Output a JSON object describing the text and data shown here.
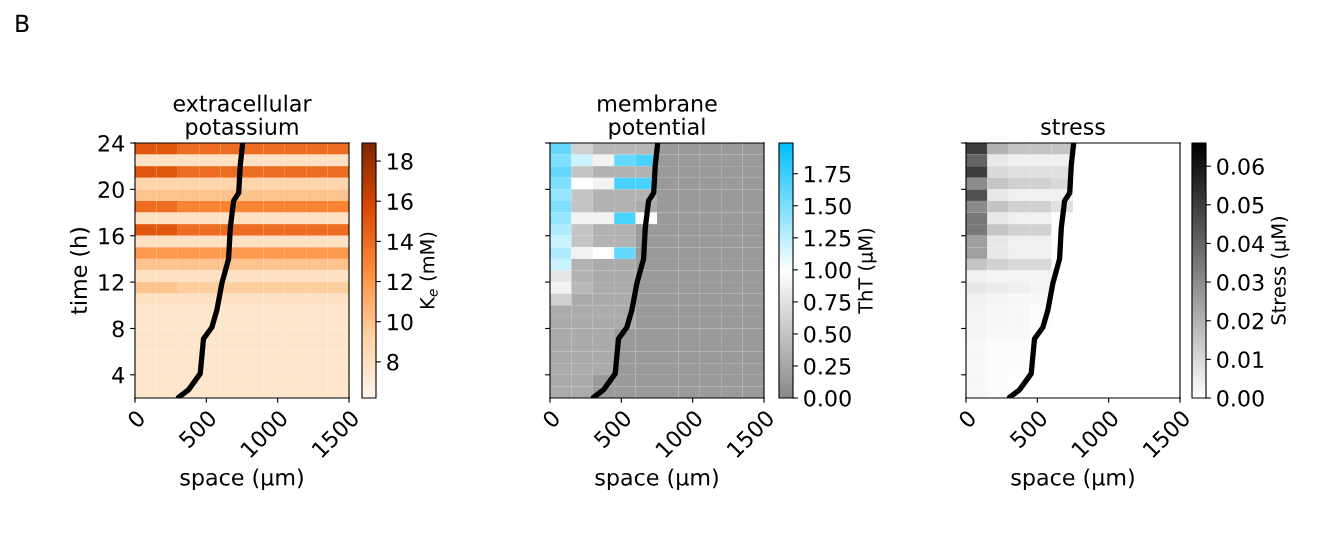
{
  "chart_data": [
    {
      "type": "heatmap",
      "title": "extracellular\npotassium",
      "xlabel": "space (µm)",
      "ylabel": "time (h)",
      "clabel": "K$_{e}$ (mM)",
      "annotations": [
        "B"
      ],
      "xlim": [
        0,
        1500
      ],
      "xticks": [
        0,
        500,
        1000,
        1500
      ],
      "ylim": [
        2,
        24
      ],
      "yticks": [
        4,
        8,
        12,
        16,
        20,
        24
      ],
      "clim": [
        6.2,
        18.9
      ],
      "cticks": [
        8,
        10,
        12,
        14,
        16,
        18
      ],
      "colors": [
        "#fff5eb",
        "#fdd0a2",
        "#fd8d3c",
        "#d94801",
        "#7f2704"
      ],
      "cells": [
        [
          15,
          15,
          14,
          14,
          14,
          14,
          14,
          14,
          14,
          14
        ],
        [
          8,
          8,
          8,
          8,
          8,
          8,
          8,
          8,
          8,
          8
        ],
        [
          15,
          15,
          14,
          14,
          14,
          14,
          14,
          14,
          14,
          14
        ],
        [
          9,
          9,
          9,
          9,
          9,
          9,
          9,
          9,
          9,
          9
        ],
        [
          10,
          10,
          10,
          10,
          10,
          10,
          10,
          10,
          10,
          10
        ],
        [
          14,
          14,
          13,
          13,
          13,
          13,
          13,
          13,
          13,
          13
        ],
        [
          8,
          8,
          8,
          8,
          8,
          8,
          8,
          8,
          8,
          8
        ],
        [
          15,
          15,
          14,
          14,
          14,
          14,
          14,
          14,
          14,
          14
        ],
        [
          8,
          8,
          8,
          8,
          8,
          8,
          8,
          8,
          8,
          8
        ],
        [
          12,
          12,
          12,
          12,
          12,
          12,
          12,
          12,
          12,
          12
        ],
        [
          10,
          10,
          10,
          10,
          10,
          10,
          10,
          10,
          10,
          10
        ],
        [
          8,
          8,
          8,
          8,
          8,
          8,
          8,
          8,
          8,
          8
        ],
        [
          10,
          10,
          9.5,
          9.5,
          9.5,
          9.5,
          9.5,
          9.5,
          9.5,
          9.5
        ],
        [
          8,
          8,
          8,
          8,
          8,
          8,
          8,
          8,
          8,
          8
        ],
        [
          7.5,
          7.5,
          7.5,
          7.5,
          7.5,
          7.5,
          7.5,
          7.5,
          7.5,
          7.5
        ],
        [
          7.5,
          7.5,
          7.5,
          7.5,
          7.5,
          7.5,
          7.5,
          7.5,
          7.5,
          7.5
        ],
        [
          7.5,
          7.5,
          7.5,
          7.5,
          7.5,
          7.5,
          7.5,
          7.5,
          7.5,
          7.5
        ],
        [
          7.5,
          7.5,
          7.5,
          7.5,
          7.5,
          7.5,
          7.5,
          7.5,
          7.5,
          7.5
        ],
        [
          7.5,
          7.5,
          7.5,
          7.5,
          7.5,
          7.5,
          7.5,
          7.5,
          7.5,
          7.5
        ],
        [
          7.5,
          7.5,
          7.5,
          7.5,
          7.5,
          7.5,
          7.5,
          7.5,
          7.5,
          7.5
        ],
        [
          7.5,
          7.5,
          7.5,
          7.5,
          7.5,
          7.5,
          7.5,
          7.5,
          7.5,
          7.5
        ],
        [
          7.5,
          7.5,
          7.5,
          7.5,
          7.5,
          7.5,
          7.5,
          7.5,
          7.5,
          7.5
        ]
      ],
      "series": [
        {
          "type": "line",
          "color": "#000000",
          "x": [
            305,
            375,
            457,
            480,
            539,
            574,
            609,
            656,
            668,
            691,
            727,
            738,
            755
          ],
          "values": [
            2.05,
            2.7,
            4.1,
            7.1,
            8.1,
            9.6,
            11.9,
            14,
            16.7,
            19,
            19.7,
            22.1,
            24
          ]
        }
      ]
    },
    {
      "type": "heatmap",
      "title": "membrane\npotential",
      "xlabel": "space (µm)",
      "clabel": "ThT (μM)",
      "tick_labels": "x",
      "xlim": [
        0,
        1500
      ],
      "xticks": [
        0,
        500,
        1000,
        1500
      ],
      "ylim": [
        2,
        24
      ],
      "yticks": [
        {
          "value": 4,
          "label": null
        },
        {
          "value": 8,
          "label": null
        },
        {
          "value": 12,
          "label": null
        },
        {
          "value": 16,
          "label": null
        },
        {
          "value": 20,
          "label": null
        },
        {
          "value": 24,
          "label": null
        }
      ],
      "clim": [
        0,
        1.99
      ],
      "cticks": [
        {
          "value": 0,
          "label": "0.00"
        },
        {
          "value": 0.25,
          "label": "0.25"
        },
        {
          "value": 0.5,
          "label": "0.50"
        },
        {
          "value": 0.75,
          "label": "0.75"
        },
        {
          "value": 1,
          "label": "1.00"
        },
        {
          "value": 1.25,
          "label": "1.25"
        },
        {
          "value": 1.5,
          "label": "1.50"
        },
        {
          "value": 1.75,
          "label": "1.75"
        }
      ],
      "colors": [
        "#888888",
        "#ffffff",
        "#00bfff"
      ],
      "cells": [
        [
          1.6,
          0.6,
          0.4,
          0.4,
          0.4,
          0.15,
          0.15,
          0.15,
          0.15,
          0.15
        ],
        [
          1.5,
          1.2,
          0.9,
          1.6,
          1.7,
          0.15,
          0.15,
          0.15,
          0.15,
          0.15
        ],
        [
          1.6,
          0.5,
          0.35,
          0.35,
          0.35,
          0.15,
          0.15,
          0.15,
          0.15,
          0.15
        ],
        [
          1.5,
          1.0,
          0.9,
          1.7,
          1.7,
          0.15,
          0.15,
          0.15,
          0.15,
          0.15
        ],
        [
          1.4,
          0.5,
          0.35,
          0.35,
          0.35,
          0.15,
          0.15,
          0.15,
          0.15,
          0.15
        ],
        [
          1.5,
          0.5,
          0.35,
          0.35,
          0.3,
          0.15,
          0.15,
          0.15,
          0.15,
          0.15
        ],
        [
          1.4,
          0.9,
          0.9,
          1.7,
          1.0,
          0.15,
          0.15,
          0.15,
          0.15,
          0.15
        ],
        [
          1.3,
          0.5,
          0.35,
          0.35,
          0.15,
          0.15,
          0.15,
          0.15,
          0.15,
          0.15
        ],
        [
          1.2,
          0.5,
          0.35,
          0.35,
          0.15,
          0.15,
          0.15,
          0.15,
          0.15,
          0.15
        ],
        [
          1.3,
          0.9,
          1.0,
          1.6,
          0.15,
          0.15,
          0.15,
          0.15,
          0.15,
          0.15
        ],
        [
          1.2,
          0.35,
          0.3,
          0.3,
          0.15,
          0.15,
          0.15,
          0.15,
          0.15,
          0.15
        ],
        [
          0.8,
          0.35,
          0.3,
          0.3,
          0.15,
          0.15,
          0.15,
          0.15,
          0.15,
          0.15
        ],
        [
          0.9,
          0.4,
          0.3,
          0.3,
          0.15,
          0.15,
          0.15,
          0.15,
          0.15,
          0.15
        ],
        [
          0.6,
          0.3,
          0.3,
          0.3,
          0.15,
          0.15,
          0.15,
          0.15,
          0.15,
          0.15
        ],
        [
          0.3,
          0.3,
          0.3,
          0.3,
          0.15,
          0.15,
          0.15,
          0.15,
          0.15,
          0.15
        ],
        [
          0.3,
          0.3,
          0.3,
          0.3,
          0.15,
          0.15,
          0.15,
          0.15,
          0.15,
          0.15
        ],
        [
          0.3,
          0.3,
          0.3,
          0.15,
          0.15,
          0.15,
          0.15,
          0.15,
          0.15,
          0.15
        ],
        [
          0.3,
          0.3,
          0.3,
          0.15,
          0.15,
          0.15,
          0.15,
          0.15,
          0.15,
          0.15
        ],
        [
          0.3,
          0.3,
          0.3,
          0.15,
          0.15,
          0.15,
          0.15,
          0.15,
          0.15,
          0.15
        ],
        [
          0.3,
          0.3,
          0.3,
          0.15,
          0.15,
          0.15,
          0.15,
          0.15,
          0.15,
          0.15
        ],
        [
          0.3,
          0.3,
          0.15,
          0.15,
          0.15,
          0.15,
          0.15,
          0.15,
          0.15,
          0.15
        ],
        [
          0.3,
          0.3,
          0.15,
          0.15,
          0.15,
          0.15,
          0.15,
          0.15,
          0.15,
          0.15
        ]
      ],
      "series": [
        {
          "type": "line",
          "color": "#000000",
          "x": [
            305,
            375,
            457,
            480,
            539,
            574,
            609,
            656,
            668,
            691,
            727,
            738,
            755
          ],
          "values": [
            2.05,
            2.7,
            4.1,
            7.1,
            8.1,
            9.6,
            11.9,
            14,
            16.7,
            19,
            19.7,
            22.1,
            24
          ]
        }
      ]
    },
    {
      "type": "heatmap",
      "title": "stress",
      "xlabel": "space (µm)",
      "clabel": "Stress (μM)",
      "tick_labels": "x",
      "xlim": [
        0,
        1500
      ],
      "xticks": [
        0,
        500,
        1000,
        1500
      ],
      "ylim": [
        2,
        24
      ],
      "yticks": [
        {
          "value": 4,
          "label": null
        },
        {
          "value": 8,
          "label": null
        },
        {
          "value": 12,
          "label": null
        },
        {
          "value": 16,
          "label": null
        },
        {
          "value": 20,
          "label": null
        },
        {
          "value": 24,
          "label": null
        }
      ],
      "clim": [
        0,
        0.066
      ],
      "cticks": [
        {
          "value": 0,
          "label": "0.00"
        },
        {
          "value": 0.01,
          "label": "0.01"
        },
        {
          "value": 0.02,
          "label": "0.02"
        },
        {
          "value": 0.03,
          "label": "0.03"
        },
        {
          "value": 0.04,
          "label": "0.04"
        },
        {
          "value": 0.05,
          "label": "0.05"
        },
        {
          "value": 0.06,
          "label": "0.06"
        }
      ],
      "colors": [
        "#ffffff",
        "#000000"
      ],
      "cells": [
        [
          0.05,
          0.02,
          0.015,
          0.015,
          0.015,
          0,
          0,
          0,
          0,
          0
        ],
        [
          0.04,
          0.006,
          0.004,
          0.004,
          0.004,
          0,
          0,
          0,
          0,
          0
        ],
        [
          0.05,
          0.01,
          0.008,
          0.008,
          0.008,
          0,
          0,
          0,
          0,
          0
        ],
        [
          0.03,
          0.015,
          0.012,
          0.012,
          0.01,
          0,
          0,
          0,
          0,
          0
        ],
        [
          0.045,
          0.006,
          0.004,
          0.004,
          0.004,
          0,
          0,
          0,
          0,
          0
        ],
        [
          0.03,
          0.015,
          0.012,
          0.012,
          0.008,
          0,
          0,
          0,
          0,
          0
        ],
        [
          0.035,
          0.006,
          0.004,
          0.004,
          0,
          0,
          0,
          0,
          0,
          0
        ],
        [
          0.035,
          0.015,
          0.012,
          0.012,
          0,
          0,
          0,
          0,
          0,
          0
        ],
        [
          0.025,
          0.006,
          0.004,
          0.004,
          0,
          0,
          0,
          0,
          0,
          0
        ],
        [
          0.025,
          0.006,
          0.004,
          0.004,
          0,
          0,
          0,
          0,
          0,
          0
        ],
        [
          0.015,
          0.012,
          0.01,
          0.01,
          0,
          0,
          0,
          0,
          0,
          0
        ],
        [
          0.004,
          0.003,
          0.003,
          0.003,
          0,
          0,
          0,
          0,
          0,
          0
        ],
        [
          0.006,
          0.005,
          0.004,
          0.003,
          0,
          0,
          0,
          0,
          0,
          0
        ],
        [
          0.004,
          0.003,
          0.002,
          0.002,
          0,
          0,
          0,
          0,
          0,
          0
        ],
        [
          0.003,
          0.002,
          0.002,
          0.001,
          0,
          0,
          0,
          0,
          0,
          0
        ],
        [
          0.003,
          0.002,
          0.002,
          0.001,
          0,
          0,
          0,
          0,
          0,
          0
        ],
        [
          0.003,
          0.002,
          0.002,
          0,
          0,
          0,
          0,
          0,
          0,
          0
        ],
        [
          0.002,
          0.001,
          0.001,
          0,
          0,
          0,
          0,
          0,
          0,
          0
        ],
        [
          0.002,
          0.001,
          0.001,
          0,
          0,
          0,
          0,
          0,
          0,
          0
        ],
        [
          0.002,
          0.001,
          0.001,
          0,
          0,
          0,
          0,
          0,
          0,
          0
        ],
        [
          0.002,
          0.001,
          0,
          0,
          0,
          0,
          0,
          0,
          0,
          0
        ],
        [
          0.002,
          0.001,
          0,
          0,
          0,
          0,
          0,
          0,
          0,
          0
        ]
      ],
      "series": [
        {
          "type": "line",
          "color": "#000000",
          "x": [
            305,
            375,
            457,
            480,
            539,
            574,
            609,
            656,
            668,
            691,
            727,
            738,
            755
          ],
          "values": [
            2.05,
            2.7,
            4.1,
            7.1,
            8.1,
            9.6,
            11.9,
            14,
            16.7,
            19,
            19.7,
            22.1,
            24
          ]
        }
      ]
    }
  ]
}
